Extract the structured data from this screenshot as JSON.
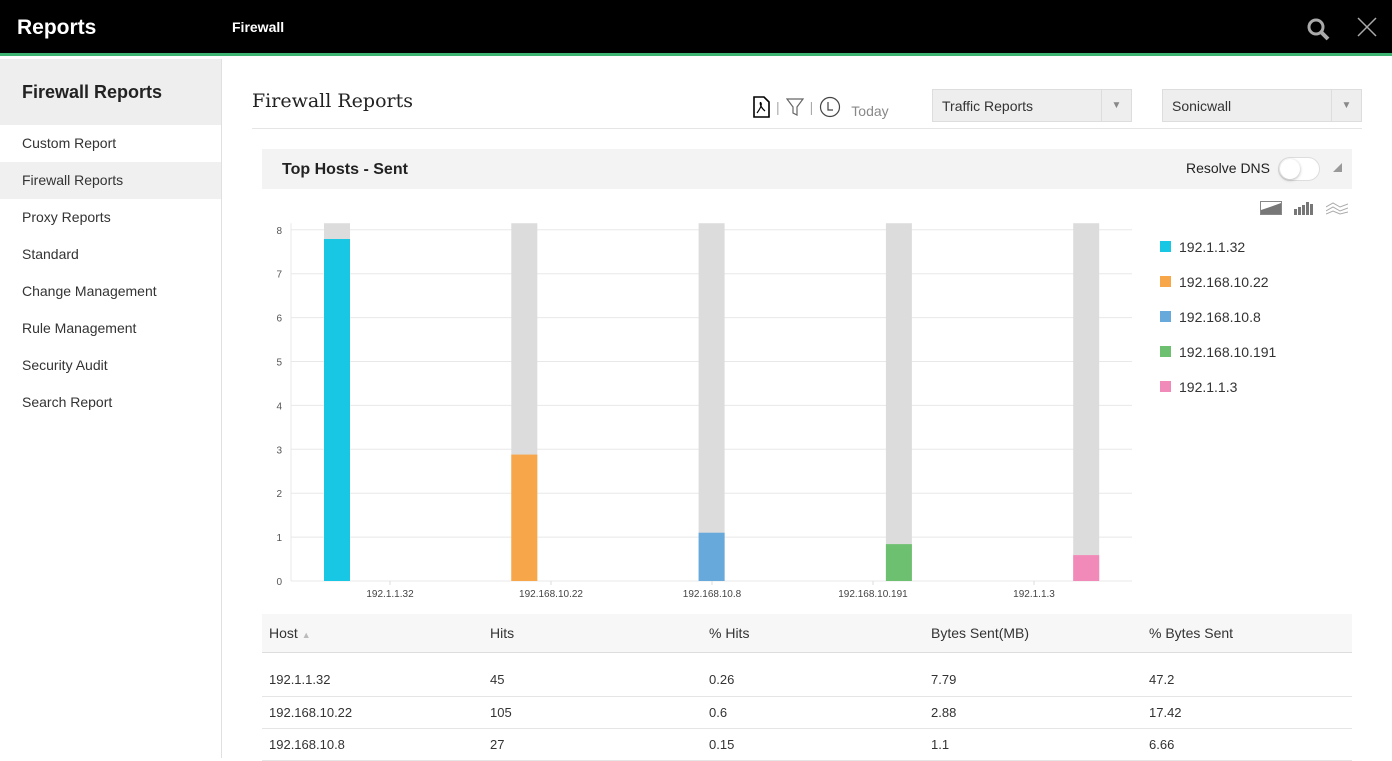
{
  "header": {
    "app_title": "Reports",
    "module": "Firewall"
  },
  "sidebar": {
    "title": "Firewall Reports",
    "items": [
      {
        "label": "Custom Report"
      },
      {
        "label": "Firewall Reports",
        "active": true
      },
      {
        "label": "Proxy Reports"
      },
      {
        "label": "Standard"
      },
      {
        "label": "Change Management"
      },
      {
        "label": "Rule Management"
      },
      {
        "label": "Security Audit"
      },
      {
        "label": "Search Report"
      }
    ]
  },
  "main": {
    "title": "Firewall Reports",
    "period": "Today",
    "report_type": "Traffic Reports",
    "device": "Sonicwall"
  },
  "panel": {
    "title": "Top Hosts - Sent",
    "resolve_dns_label": "Resolve DNS",
    "resolve_dns_on": false
  },
  "chart_data": {
    "type": "bar",
    "categories": [
      "192.1.1.32",
      "192.168.10.22",
      "192.168.10.8",
      "192.168.10.191",
      "192.1.1.3"
    ],
    "values": [
      7.79,
      2.88,
      1.1,
      0.84,
      0.59
    ],
    "colors": [
      "#17c7e3",
      "#f7a74a",
      "#67a9db",
      "#6cc06f",
      "#f28ab9"
    ],
    "background_color": "#dcdcdc",
    "yticks": [
      0,
      1,
      2,
      3,
      4,
      5,
      6,
      7,
      8
    ],
    "ylim": [
      0,
      8.15
    ],
    "grid": true,
    "legend": "right",
    "ylabel": "",
    "xlabel": ""
  },
  "table": {
    "columns": [
      "Host",
      "Hits",
      "% Hits",
      "Bytes Sent(MB)",
      "% Bytes Sent"
    ],
    "rows": [
      [
        "192.1.1.32",
        "45",
        "0.26",
        "7.79",
        "47.2"
      ],
      [
        "192.168.10.22",
        "105",
        "0.6",
        "2.88",
        "17.42"
      ],
      [
        "192.168.10.8",
        "27",
        "0.15",
        "1.1",
        "6.66"
      ]
    ]
  }
}
